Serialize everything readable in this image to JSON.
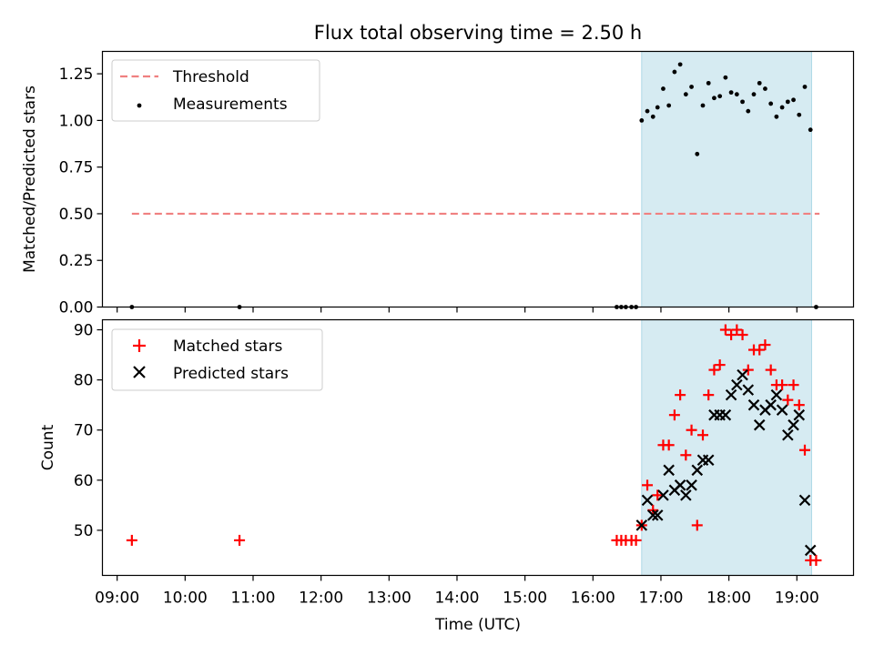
{
  "chart_data": [
    {
      "type": "scatter",
      "title": "Flux total observing time = 2.50 h",
      "xlabel": "",
      "ylabel": "Matched/Predicted stars",
      "xlim": [
        "08:47",
        "19:50"
      ],
      "ylim": [
        0,
        1.37
      ],
      "yticks": [
        0.0,
        0.25,
        0.5,
        0.75,
        1.0,
        1.25
      ],
      "ytick_labels": [
        "0.00",
        "0.25",
        "0.50",
        "0.75",
        "1.00",
        "1.25"
      ],
      "highlight_span": [
        "16:43",
        "19:13"
      ],
      "threshold": {
        "name": "Threshold",
        "value": 0.5,
        "x_range": [
          "09:13",
          "19:20"
        ],
        "color": "#f08080"
      },
      "legend": {
        "position": "top-left",
        "entries": [
          "Threshold",
          "Measurements"
        ]
      },
      "series": [
        {
          "name": "Measurements",
          "marker": "dot",
          "color": "#000000",
          "points": [
            [
              "09:13",
              0.0
            ],
            [
              "10:48",
              0.0
            ],
            [
              "16:21",
              0.0
            ],
            [
              "16:25",
              0.0
            ],
            [
              "16:29",
              0.0
            ],
            [
              "16:34",
              0.0
            ],
            [
              "16:38",
              0.0
            ],
            [
              "16:43",
              1.0
            ],
            [
              "16:48",
              1.05
            ],
            [
              "16:53",
              1.02
            ],
            [
              "16:57",
              1.07
            ],
            [
              "17:02",
              1.17
            ],
            [
              "17:07",
              1.08
            ],
            [
              "17:12",
              1.26
            ],
            [
              "17:17",
              1.3
            ],
            [
              "17:22",
              1.14
            ],
            [
              "17:27",
              1.18
            ],
            [
              "17:32",
              0.82
            ],
            [
              "17:37",
              1.08
            ],
            [
              "17:42",
              1.2
            ],
            [
              "17:47",
              1.12
            ],
            [
              "17:52",
              1.13
            ],
            [
              "17:57",
              1.23
            ],
            [
              "18:02",
              1.15
            ],
            [
              "18:07",
              1.14
            ],
            [
              "18:12",
              1.1
            ],
            [
              "18:17",
              1.05
            ],
            [
              "18:22",
              1.14
            ],
            [
              "18:27",
              1.2
            ],
            [
              "18:32",
              1.17
            ],
            [
              "18:37",
              1.09
            ],
            [
              "18:42",
              1.02
            ],
            [
              "18:47",
              1.07
            ],
            [
              "18:52",
              1.1
            ],
            [
              "18:57",
              1.11
            ],
            [
              "19:02",
              1.03
            ],
            [
              "19:07",
              1.18
            ],
            [
              "19:12",
              0.95
            ],
            [
              "19:17",
              0.0
            ]
          ]
        }
      ]
    },
    {
      "type": "scatter",
      "title": "",
      "xlabel": "Time (UTC)",
      "ylabel": "Count",
      "xlim": [
        "08:47",
        "19:50"
      ],
      "ylim": [
        41,
        92
      ],
      "yticks": [
        50,
        60,
        70,
        80,
        90
      ],
      "ytick_labels": [
        "50",
        "60",
        "70",
        "80",
        "90"
      ],
      "xticks": [
        "09:00",
        "10:00",
        "11:00",
        "12:00",
        "13:00",
        "14:00",
        "15:00",
        "16:00",
        "17:00",
        "18:00",
        "19:00"
      ],
      "highlight_span": [
        "16:43",
        "19:13"
      ],
      "legend": {
        "position": "top-left",
        "entries": [
          "Matched stars",
          "Predicted stars"
        ]
      },
      "series": [
        {
          "name": "Matched stars",
          "marker": "plus",
          "color": "#ff0000",
          "points": [
            [
              "09:13",
              48
            ],
            [
              "10:48",
              48
            ],
            [
              "16:21",
              48
            ],
            [
              "16:25",
              48
            ],
            [
              "16:29",
              48
            ],
            [
              "16:34",
              48
            ],
            [
              "16:38",
              48
            ],
            [
              "16:43",
              51
            ],
            [
              "16:48",
              59
            ],
            [
              "16:53",
              54
            ],
            [
              "16:57",
              57
            ],
            [
              "17:02",
              67
            ],
            [
              "17:07",
              67
            ],
            [
              "17:12",
              73
            ],
            [
              "17:17",
              77
            ],
            [
              "17:22",
              65
            ],
            [
              "17:27",
              70
            ],
            [
              "17:32",
              51
            ],
            [
              "17:37",
              69
            ],
            [
              "17:42",
              77
            ],
            [
              "17:47",
              82
            ],
            [
              "17:52",
              83
            ],
            [
              "17:57",
              90
            ],
            [
              "18:02",
              89
            ],
            [
              "18:07",
              90
            ],
            [
              "18:12",
              89
            ],
            [
              "18:17",
              82
            ],
            [
              "18:22",
              86
            ],
            [
              "18:27",
              86
            ],
            [
              "18:32",
              87
            ],
            [
              "18:37",
              82
            ],
            [
              "18:42",
              79
            ],
            [
              "18:47",
              79
            ],
            [
              "18:52",
              76
            ],
            [
              "18:57",
              79
            ],
            [
              "19:02",
              75
            ],
            [
              "19:07",
              66
            ],
            [
              "19:12",
              44
            ],
            [
              "19:17",
              44
            ]
          ]
        },
        {
          "name": "Predicted stars",
          "marker": "x",
          "color": "#000000",
          "points": [
            [
              "16:43",
              51
            ],
            [
              "16:48",
              56
            ],
            [
              "16:53",
              53
            ],
            [
              "16:57",
              53
            ],
            [
              "17:02",
              57
            ],
            [
              "17:07",
              62
            ],
            [
              "17:12",
              58
            ],
            [
              "17:17",
              59
            ],
            [
              "17:22",
              57
            ],
            [
              "17:27",
              59
            ],
            [
              "17:32",
              62
            ],
            [
              "17:37",
              64
            ],
            [
              "17:42",
              64
            ],
            [
              "17:47",
              73
            ],
            [
              "17:52",
              73
            ],
            [
              "17:57",
              73
            ],
            [
              "18:02",
              77
            ],
            [
              "18:07",
              79
            ],
            [
              "18:12",
              81
            ],
            [
              "18:17",
              78
            ],
            [
              "18:22",
              75
            ],
            [
              "18:27",
              71
            ],
            [
              "18:32",
              74
            ],
            [
              "18:37",
              75
            ],
            [
              "18:42",
              77
            ],
            [
              "18:47",
              74
            ],
            [
              "18:52",
              69
            ],
            [
              "18:57",
              71
            ],
            [
              "19:02",
              73
            ],
            [
              "19:07",
              56
            ],
            [
              "19:12",
              46
            ]
          ]
        }
      ]
    }
  ],
  "colors": {
    "highlight": "#add8e6",
    "threshold": "#f08080",
    "matched": "#ff0000",
    "predicted": "#000000"
  }
}
